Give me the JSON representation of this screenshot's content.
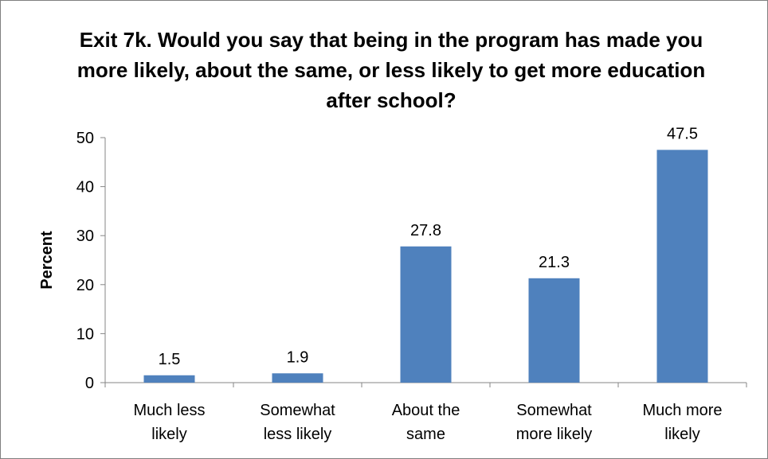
{
  "chart_data": {
    "type": "bar",
    "title": "Exit 7k. Would you say that being in the program has made you more likely, about the same, or less likely to get more education after school?",
    "ylabel": "Percent",
    "xlabel": "",
    "ylim": [
      0,
      50
    ],
    "yticks": [
      0,
      10,
      20,
      30,
      40,
      50
    ],
    "categories": [
      [
        "Much less",
        "likely"
      ],
      [
        "Somewhat",
        "less likely"
      ],
      [
        "About the",
        "same"
      ],
      [
        "Somewhat",
        "more likely"
      ],
      [
        "Much more",
        "likely"
      ]
    ],
    "values": [
      1.5,
      1.9,
      27.8,
      21.3,
      47.5
    ],
    "value_labels": [
      "1.5",
      "1.9",
      "27.8",
      "21.3",
      "47.5"
    ],
    "bar_color": "#4f81bd",
    "grid": false,
    "legend": "none"
  }
}
